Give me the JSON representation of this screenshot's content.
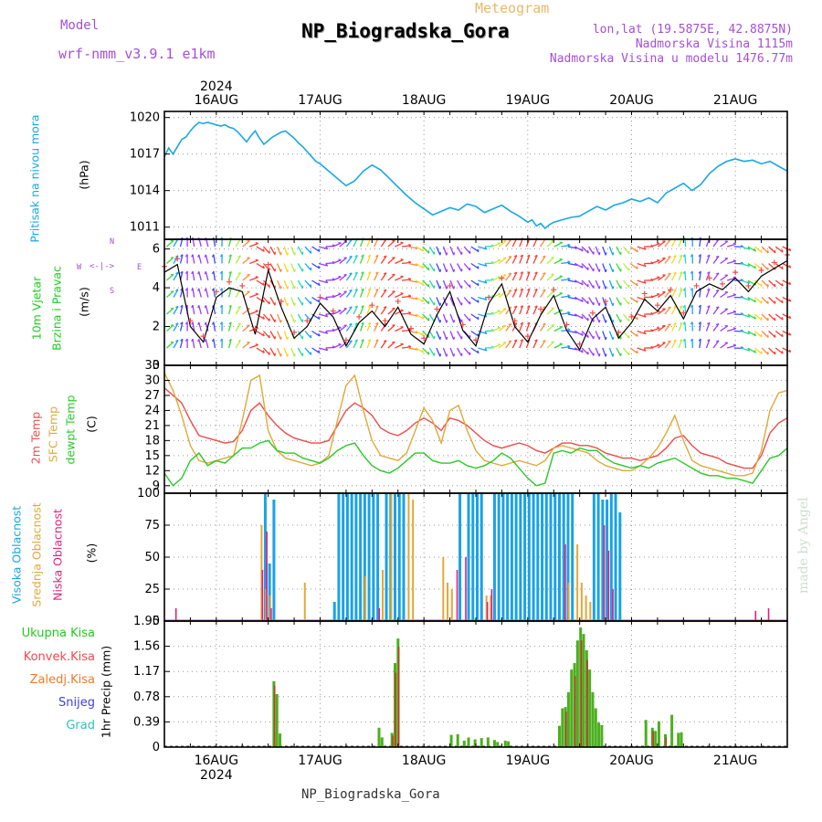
{
  "header": {
    "title": "NP_Biogradska_Gora",
    "subtitle": "Meteogram",
    "model_label": "Model",
    "model_name": "wrf-nmm_v3.9.1 e1km",
    "lonlat": "lon,lat (19.5875E, 42.8875N)",
    "elevation": "Nadmorska Visina 1115m",
    "model_elevation": "Nadmorska Visina u modelu 1476.77m",
    "footer": "NP_Biogradska_Gora",
    "credit": "made by Angel"
  },
  "colors": {
    "pressure": "#1aa7e6",
    "wind_green": "#1fcc1f",
    "temp_red": "#ef4b4b",
    "sfc_orange": "#e0a93a",
    "dewpt_green": "#29c929",
    "high_cloud": "#1aa2e8",
    "mid_cloud": "#e0a93a",
    "low_cloud": "#e0207a",
    "precip_green": "#4caf1f",
    "precip_red": "#c0392b",
    "precip_orange": "#f07a2a",
    "snow": "#4040e0",
    "hail": "#30c0c0",
    "purple": "#a44fd6"
  },
  "chart_data": [
    {
      "type": "line",
      "panel": "pressure",
      "ylabel_main": "Pritisak na nivou mora",
      "ylabel_unit": "(hPa)",
      "xlim": [
        0,
        144
      ],
      "ylim": [
        1010,
        1020.5
      ],
      "yticks": [
        "1020",
        "1017",
        "1014",
        "1011"
      ],
      "x_top_year": "2024",
      "x_bottom_year": "2024",
      "x_date_labels": [
        "16AUG",
        "17AUG",
        "18AUG",
        "19AUG",
        "20AUG",
        "21AUG"
      ],
      "x_date_hours": [
        12,
        36,
        60,
        84,
        108,
        132
      ],
      "series": [
        {
          "x": [
            0,
            1,
            2,
            3,
            4,
            5,
            6,
            7,
            8,
            9,
            10,
            11,
            12,
            13,
            14,
            15,
            16,
            17,
            18,
            19,
            20,
            21,
            22,
            23,
            24,
            25,
            26,
            27,
            28,
            29,
            30,
            31,
            32,
            33,
            34,
            35,
            36,
            38,
            40,
            42,
            44,
            46,
            48,
            50,
            52,
            54,
            56,
            58,
            60,
            62,
            64,
            66,
            68,
            70,
            72,
            74,
            76,
            78,
            80,
            82,
            84,
            85,
            86,
            87,
            88,
            89,
            90,
            92,
            94,
            96,
            98,
            100,
            102,
            104,
            106,
            108,
            110,
            112,
            114,
            116,
            118,
            120,
            122,
            124,
            126,
            128,
            130,
            132,
            134,
            136,
            138,
            140,
            142,
            144
          ],
          "values": [
            1016.8,
            1017.5,
            1017.0,
            1017.6,
            1018.2,
            1018.4,
            1018.9,
            1019.3,
            1019.6,
            1019.5,
            1019.6,
            1019.5,
            1019.4,
            1019.3,
            1019.4,
            1019.2,
            1019.1,
            1018.8,
            1018.4,
            1018.0,
            1018.5,
            1018.9,
            1018.3,
            1017.8,
            1018.1,
            1018.4,
            1018.6,
            1018.8,
            1018.9,
            1018.6,
            1018.3,
            1017.9,
            1017.6,
            1017.2,
            1016.8,
            1016.4,
            1016.2,
            1015.6,
            1015.0,
            1014.4,
            1014.8,
            1015.6,
            1016.1,
            1015.7,
            1015.0,
            1014.3,
            1013.6,
            1013.0,
            1012.5,
            1012.0,
            1012.3,
            1012.6,
            1012.4,
            1012.9,
            1012.7,
            1012.2,
            1012.5,
            1012.8,
            1012.3,
            1011.9,
            1011.4,
            1011.6,
            1011.1,
            1011.3,
            1010.9,
            1011.2,
            1011.4,
            1011.6,
            1011.8,
            1011.9,
            1012.3,
            1012.7,
            1012.4,
            1012.8,
            1013.0,
            1013.3,
            1013.1,
            1013.4,
            1013.0,
            1013.8,
            1014.2,
            1014.6,
            1014.0,
            1014.5,
            1015.4,
            1016.0,
            1016.4,
            1016.6,
            1016.4,
            1016.5,
            1016.2,
            1016.4,
            1016.0,
            1015.6
          ]
        }
      ]
    },
    {
      "type": "line",
      "panel": "wind",
      "ylabel_main": "10m Vjetar",
      "ylabel_sub": "Brzina i Pravac",
      "ylabel_unit": "(m/s)",
      "compass": {
        "n": "N",
        "s": "S",
        "w": "W",
        "e": "E"
      },
      "ylim": [
        0,
        6.5
      ],
      "yticks": [
        "6",
        "4",
        "2",
        "0"
      ],
      "series": [
        {
          "name": "",
          "x": [
            0,
            3,
            6,
            9,
            12,
            15,
            18,
            21,
            24,
            27,
            30,
            33,
            36,
            39,
            42,
            45,
            48,
            51,
            54,
            57,
            60,
            63,
            66,
            69,
            72,
            75,
            78,
            81,
            84,
            87,
            90,
            93,
            96,
            99,
            102,
            105,
            108,
            111,
            114,
            117,
            120,
            123,
            126,
            129,
            132,
            135,
            138,
            141,
            144
          ],
          "values": [
            4.8,
            5.2,
            2.0,
            1.2,
            3.5,
            4.0,
            3.8,
            1.6,
            4.9,
            3.0,
            1.4,
            2.0,
            3.2,
            2.5,
            1.0,
            2.2,
            2.8,
            2.0,
            3.0,
            1.6,
            1.1,
            2.6,
            3.8,
            1.8,
            1.0,
            3.2,
            4.2,
            2.0,
            1.2,
            2.6,
            3.6,
            1.8,
            0.8,
            2.4,
            3.0,
            1.4,
            2.2,
            3.4,
            2.8,
            3.6,
            2.4,
            3.8,
            4.2,
            3.9,
            4.5,
            3.8,
            4.6,
            5.0,
            5.4
          ]
        }
      ]
    },
    {
      "type": "line",
      "panel": "temperature",
      "ylabel_main": "2m Temp",
      "ylabel_sfc": "SFC Temp",
      "ylabel_dew": "dewpt Temp",
      "ylabel_unit": "(C)",
      "ylim": [
        7.5,
        33
      ],
      "yticks": [
        "33",
        "30",
        "27",
        "24",
        "21",
        "18",
        "15",
        "12",
        "9"
      ],
      "x": [
        0,
        2,
        4,
        6,
        8,
        10,
        12,
        14,
        16,
        18,
        20,
        22,
        24,
        26,
        28,
        30,
        32,
        34,
        36,
        38,
        40,
        42,
        44,
        46,
        48,
        50,
        52,
        54,
        56,
        58,
        60,
        62,
        64,
        66,
        68,
        70,
        72,
        74,
        76,
        78,
        80,
        82,
        84,
        86,
        88,
        90,
        92,
        94,
        96,
        98,
        100,
        102,
        104,
        106,
        108,
        110,
        112,
        114,
        116,
        118,
        120,
        122,
        124,
        126,
        128,
        130,
        132,
        134,
        136,
        138,
        140,
        142,
        144
      ],
      "series": [
        {
          "name": "2m Temp",
          "values": [
            28.5,
            27.0,
            25.5,
            22.0,
            19.0,
            18.5,
            18.0,
            17.5,
            17.8,
            20.0,
            24.0,
            25.5,
            23.0,
            21.0,
            19.5,
            18.5,
            18.0,
            17.5,
            17.5,
            18.0,
            21.0,
            24.0,
            25.5,
            24.5,
            23.0,
            20.5,
            19.5,
            19.0,
            20.0,
            21.5,
            22.5,
            21.5,
            20.0,
            22.5,
            22.0,
            21.0,
            19.5,
            18.0,
            17.0,
            16.5,
            17.0,
            17.5,
            17.0,
            16.0,
            15.5,
            16.5,
            17.5,
            17.5,
            17.0,
            17.0,
            16.5,
            15.5,
            15.0,
            14.5,
            14.5,
            14.0,
            14.5,
            15.0,
            16.5,
            18.5,
            19.0,
            17.0,
            15.5,
            15.0,
            14.5,
            13.5,
            13.0,
            12.5,
            12.5,
            15.0,
            19.5,
            21.5,
            22.5
          ]
        },
        {
          "name": "SFC Temp",
          "values": [
            31.5,
            28.0,
            23.0,
            17.0,
            14.0,
            13.5,
            14.0,
            14.5,
            15.0,
            22.0,
            30.0,
            31.0,
            20.0,
            16.0,
            14.5,
            14.0,
            13.5,
            13.0,
            13.5,
            15.0,
            22.0,
            29.0,
            31.0,
            24.0,
            18.0,
            15.0,
            14.5,
            14.0,
            15.5,
            20.0,
            24.5,
            22.0,
            17.5,
            24.0,
            25.0,
            20.0,
            16.0,
            14.0,
            13.5,
            13.0,
            13.5,
            14.0,
            13.5,
            13.0,
            14.0,
            16.5,
            17.0,
            16.5,
            16.0,
            15.5,
            14.0,
            13.0,
            12.5,
            12.0,
            12.0,
            13.0,
            14.5,
            16.5,
            19.5,
            23.0,
            18.0,
            14.0,
            13.0,
            12.5,
            12.0,
            11.5,
            11.0,
            11.0,
            11.5,
            16.0,
            24.0,
            27.5,
            28.0
          ]
        },
        {
          "name": "dewpt Temp",
          "values": [
            11.5,
            9.0,
            10.5,
            14.0,
            15.5,
            13.0,
            14.0,
            13.5,
            15.0,
            16.5,
            16.5,
            17.5,
            18.0,
            16.0,
            15.5,
            15.5,
            14.5,
            14.0,
            13.5,
            14.5,
            16.0,
            17.0,
            17.5,
            15.0,
            13.0,
            12.0,
            11.5,
            12.5,
            14.0,
            15.5,
            15.5,
            14.0,
            13.5,
            13.5,
            14.0,
            13.0,
            12.5,
            13.0,
            14.0,
            15.5,
            14.5,
            12.5,
            10.5,
            9.0,
            9.5,
            15.5,
            16.0,
            15.5,
            16.5,
            16.0,
            16.0,
            14.5,
            13.5,
            13.0,
            12.5,
            13.0,
            12.5,
            13.5,
            14.0,
            14.5,
            13.5,
            12.5,
            11.5,
            11.0,
            11.0,
            10.5,
            10.5,
            10.0,
            9.5,
            12.0,
            14.5,
            15.0,
            16.5
          ]
        }
      ]
    },
    {
      "type": "bar",
      "panel": "cloud",
      "ylabel_high": "Visoka Oblacnost",
      "ylabel_mid": "Srednja Oblacnost",
      "ylabel_low": "Niska Oblacnost",
      "ylabel_unit": "(%)",
      "ylim": [
        0,
        100
      ],
      "yticks": [
        "100",
        "75",
        "50",
        "25",
        "0"
      ],
      "series": [
        {
          "name": "Visoka Oblacnost",
          "x": [
            23,
            24,
            25,
            39,
            40,
            41,
            42,
            43,
            44,
            45,
            46,
            47,
            48,
            49,
            51,
            52,
            53,
            54,
            55,
            68,
            70,
            71,
            72,
            73,
            76,
            77,
            78,
            79,
            80,
            81,
            82,
            83,
            84,
            85,
            86,
            87,
            88,
            89,
            90,
            91,
            92,
            93,
            94,
            99,
            100,
            101,
            102,
            103,
            104,
            105
          ],
          "values": [
            100,
            45,
            95,
            15,
            100,
            100,
            100,
            100,
            100,
            100,
            100,
            100,
            100,
            100,
            100,
            100,
            100,
            100,
            100,
            100,
            100,
            100,
            100,
            100,
            100,
            100,
            100,
            100,
            100,
            100,
            100,
            100,
            100,
            100,
            100,
            100,
            100,
            100,
            100,
            100,
            100,
            100,
            100,
            100,
            100,
            95,
            95,
            100,
            100,
            85
          ]
        },
        {
          "name": "Srednja Oblacnost",
          "x": [
            22,
            23,
            24,
            32,
            46,
            50,
            52,
            56,
            57,
            64,
            65,
            66,
            74,
            75,
            93,
            95,
            96,
            97,
            98
          ],
          "values": [
            75,
            25,
            20,
            30,
            35,
            40,
            100,
            100,
            95,
            50,
            30,
            25,
            20,
            20,
            30,
            60,
            30,
            20,
            15
          ]
        },
        {
          "name": "Niska Oblacnost",
          "x": [
            2,
            22,
            23,
            24,
            49,
            67,
            69,
            74,
            75,
            92,
            101,
            102,
            103,
            136,
            139
          ],
          "values": [
            10,
            40,
            70,
            10,
            10,
            40,
            50,
            15,
            25,
            60,
            75,
            55,
            25,
            8,
            10
          ]
        }
      ]
    },
    {
      "type": "bar",
      "panel": "precip",
      "ylabel_main": "1hr Precip",
      "ylabel_unit": "(mm)",
      "legend": [
        "Ukupna Kisa",
        "Konvek.Kisa",
        "Zaledj.Kisa",
        "Snijeg",
        "Grad"
      ],
      "ylim": [
        0,
        1.95
      ],
      "yticks": [
        "1.95",
        "1.56",
        "1.17",
        "0.78",
        "0.39",
        "0"
      ],
      "series": [
        {
          "name": "Ukupna Kisa",
          "x": [
            25,
            25.7,
            26.4,
            49.3,
            50,
            52.3,
            53,
            53.7,
            66,
            67.5,
            69,
            70,
            71.5,
            73,
            74.5,
            76,
            76.7,
            78.5,
            79.2,
            91,
            91.7,
            92.4,
            93.1,
            93.8,
            94.5,
            95.2,
            95.9,
            96.6,
            97.3,
            98,
            98.7,
            99.4,
            100.1,
            100.8,
            111,
            112.5,
            113.2,
            114,
            115.5,
            117,
            118.5,
            119.2
          ],
          "values": [
            1.02,
            0.82,
            0.21,
            0.3,
            0.15,
            0.22,
            1.3,
            1.68,
            0.19,
            0.2,
            0.1,
            0.15,
            0.12,
            0.14,
            0.15,
            0.11,
            0.08,
            0.1,
            0.09,
            0.33,
            0.6,
            0.62,
            0.85,
            1.2,
            1.3,
            1.65,
            1.85,
            1.75,
            1.5,
            1.2,
            0.85,
            0.6,
            0.38,
            0.34,
            0.42,
            0.3,
            0.25,
            0.4,
            0.2,
            0.5,
            0.22,
            0.23
          ]
        },
        {
          "name": "Konvek.Kisa",
          "x": [
            25,
            52.3,
            53,
            53.7,
            92.4,
            94.5,
            95.9,
            97.3,
            112.5,
            115.5
          ],
          "values": [
            0.95,
            0.18,
            1.15,
            1.55,
            0.55,
            1.1,
            1.65,
            1.35,
            0.25,
            0.15
          ]
        }
      ]
    }
  ]
}
